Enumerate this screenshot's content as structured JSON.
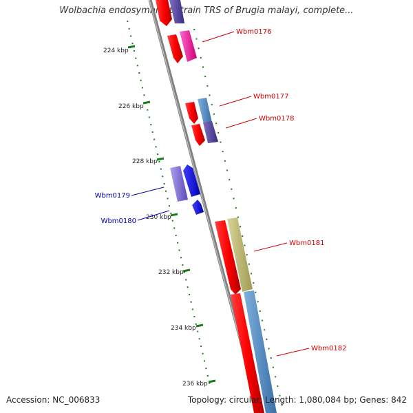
{
  "title": "Wolbachia endosymbiont strain TRS of Brugia malayi, complete...",
  "footer": {
    "accession": "Accession: NC_006833",
    "summary": "Topology: circular; Length: 1,080,084 bp; Genes: 842"
  },
  "ticks": [
    {
      "label": "224 kbp"
    },
    {
      "label": "226 kbp"
    },
    {
      "label": "228 kbp"
    },
    {
      "label": "230 kbp"
    },
    {
      "label": "232 kbp"
    },
    {
      "label": "234 kbp"
    },
    {
      "label": "236 kbp"
    }
  ],
  "genes": [
    {
      "name": "Wbm0176",
      "color": "#cc0000"
    },
    {
      "name": "Wbm0177",
      "color": "#cc0000"
    },
    {
      "name": "Wbm0178",
      "color": "#cc0000"
    },
    {
      "name": "Wbm0179",
      "color": "#0000aa"
    },
    {
      "name": "Wbm0180",
      "color": "#0000aa"
    },
    {
      "name": "Wbm0181",
      "color": "#cc0000"
    },
    {
      "name": "Wbm0182",
      "color": "#cc0000"
    }
  ],
  "colors": {
    "forward_strand": "#ff0000",
    "reverse_strand": "#0000ff",
    "backbone": "#808080",
    "tick_mark": "#1a7a1a"
  }
}
